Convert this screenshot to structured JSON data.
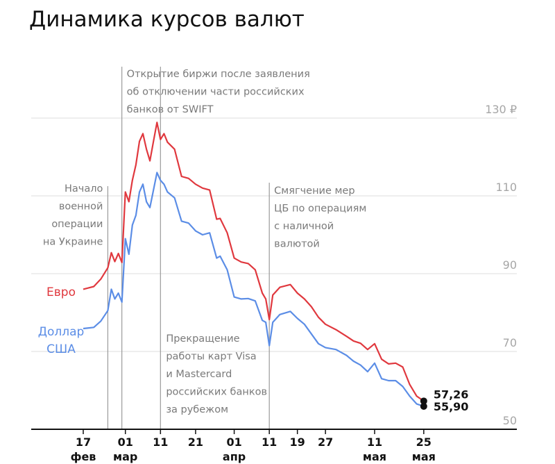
{
  "chart_data": {
    "type": "line",
    "title": "Динамика курсов валют",
    "y_ticks": [
      {
        "value": 130,
        "label": "130 ₽"
      },
      {
        "value": 110,
        "label": "110"
      },
      {
        "value": 90,
        "label": "90"
      },
      {
        "value": 70,
        "label": "70"
      },
      {
        "value": 50,
        "label": "50"
      }
    ],
    "ylim": [
      50,
      130
    ],
    "x_ticks": [
      {
        "date": "2022-02-17",
        "day": "17",
        "month": "фев"
      },
      {
        "date": "2022-03-01",
        "day": "01",
        "month": "мар"
      },
      {
        "date": "2022-03-11",
        "day": "11",
        "month": ""
      },
      {
        "date": "2022-03-21",
        "day": "21",
        "month": ""
      },
      {
        "date": "2022-04-01",
        "day": "01",
        "month": "апр"
      },
      {
        "date": "2022-04-11",
        "day": "11",
        "month": ""
      },
      {
        "date": "2022-04-19",
        "day": "19",
        "month": ""
      },
      {
        "date": "2022-04-27",
        "day": "27",
        "month": ""
      },
      {
        "date": "2022-05-11",
        "day": "11",
        "month": "мая"
      },
      {
        "date": "2022-05-25",
        "day": "25",
        "month": "мая"
      }
    ],
    "series": [
      {
        "name": "Евро",
        "color": "#e0383e",
        "end_label": "57,26",
        "points": [
          [
            "2022-02-17",
            86.0
          ],
          [
            "2022-02-20",
            86.7
          ],
          [
            "2022-02-22",
            88.6
          ],
          [
            "2022-02-24",
            91.5
          ],
          [
            "2022-02-25",
            95.4
          ],
          [
            "2022-02-26",
            93.1
          ],
          [
            "2022-02-27",
            95.2
          ],
          [
            "2022-02-28",
            92.9
          ],
          [
            "2022-03-01",
            111.0
          ],
          [
            "2022-03-02",
            108.5
          ],
          [
            "2022-03-03",
            114.0
          ],
          [
            "2022-03-04",
            118.0
          ],
          [
            "2022-03-05",
            124.0
          ],
          [
            "2022-03-06",
            126.0
          ],
          [
            "2022-03-07",
            122.0
          ],
          [
            "2022-03-08",
            119.0
          ],
          [
            "2022-03-09",
            124.0
          ],
          [
            "2022-03-10",
            128.9
          ],
          [
            "2022-03-11",
            124.5
          ],
          [
            "2022-03-12",
            126.0
          ],
          [
            "2022-03-13",
            123.8
          ],
          [
            "2022-03-15",
            122.0
          ],
          [
            "2022-03-17",
            115.0
          ],
          [
            "2022-03-19",
            114.5
          ],
          [
            "2022-03-21",
            113.0
          ],
          [
            "2022-03-23",
            112.0
          ],
          [
            "2022-03-25",
            111.5
          ],
          [
            "2022-03-27",
            104.0
          ],
          [
            "2022-03-28",
            104.2
          ],
          [
            "2022-03-30",
            100.5
          ],
          [
            "2022-04-01",
            94.0
          ],
          [
            "2022-04-03",
            93.0
          ],
          [
            "2022-04-05",
            92.6
          ],
          [
            "2022-04-07",
            91.0
          ],
          [
            "2022-04-09",
            85.0
          ],
          [
            "2022-04-10",
            83.5
          ],
          [
            "2022-04-11",
            78.2
          ],
          [
            "2022-04-12",
            84.5
          ],
          [
            "2022-04-14",
            86.5
          ],
          [
            "2022-04-17",
            87.2
          ],
          [
            "2022-04-19",
            85.0
          ],
          [
            "2022-04-21",
            83.5
          ],
          [
            "2022-04-23",
            81.5
          ],
          [
            "2022-04-25",
            78.8
          ],
          [
            "2022-04-27",
            77.0
          ],
          [
            "2022-04-30",
            75.6
          ],
          [
            "2022-05-03",
            73.9
          ],
          [
            "2022-05-05",
            72.7
          ],
          [
            "2022-05-07",
            72.1
          ],
          [
            "2022-05-09",
            70.5
          ],
          [
            "2022-05-11",
            72.0
          ],
          [
            "2022-05-13",
            68.0
          ],
          [
            "2022-05-15",
            66.8
          ],
          [
            "2022-05-17",
            67.0
          ],
          [
            "2022-05-19",
            66.0
          ],
          [
            "2022-05-21",
            61.5
          ],
          [
            "2022-05-23",
            58.5
          ],
          [
            "2022-05-25",
            57.26
          ]
        ]
      },
      {
        "name": "Доллар США",
        "color": "#5b8de6",
        "end_label": "55,90",
        "points": [
          [
            "2022-02-17",
            75.9
          ],
          [
            "2022-02-20",
            76.2
          ],
          [
            "2022-02-22",
            77.8
          ],
          [
            "2022-02-24",
            80.5
          ],
          [
            "2022-02-25",
            86.0
          ],
          [
            "2022-02-26",
            83.5
          ],
          [
            "2022-02-27",
            85.0
          ],
          [
            "2022-02-28",
            82.7
          ],
          [
            "2022-03-01",
            99.0
          ],
          [
            "2022-03-02",
            95.0
          ],
          [
            "2022-03-03",
            102.5
          ],
          [
            "2022-03-04",
            105.0
          ],
          [
            "2022-03-05",
            111.0
          ],
          [
            "2022-03-06",
            113.0
          ],
          [
            "2022-03-07",
            108.5
          ],
          [
            "2022-03-08",
            107.0
          ],
          [
            "2022-03-09",
            111.5
          ],
          [
            "2022-03-10",
            116.0
          ],
          [
            "2022-03-11",
            114.0
          ],
          [
            "2022-03-12",
            113.0
          ],
          [
            "2022-03-13",
            111.0
          ],
          [
            "2022-03-15",
            109.5
          ],
          [
            "2022-03-17",
            103.5
          ],
          [
            "2022-03-19",
            103.0
          ],
          [
            "2022-03-21",
            101.0
          ],
          [
            "2022-03-23",
            100.0
          ],
          [
            "2022-03-25",
            100.5
          ],
          [
            "2022-03-27",
            94.0
          ],
          [
            "2022-03-28",
            94.5
          ],
          [
            "2022-03-30",
            91.0
          ],
          [
            "2022-04-01",
            84.0
          ],
          [
            "2022-04-03",
            83.5
          ],
          [
            "2022-04-05",
            83.6
          ],
          [
            "2022-04-07",
            83.0
          ],
          [
            "2022-04-09",
            78.0
          ],
          [
            "2022-04-10",
            77.5
          ],
          [
            "2022-04-11",
            71.5
          ],
          [
            "2022-04-12",
            77.5
          ],
          [
            "2022-04-14",
            79.5
          ],
          [
            "2022-04-17",
            80.3
          ],
          [
            "2022-04-19",
            78.5
          ],
          [
            "2022-04-21",
            77.0
          ],
          [
            "2022-04-23",
            74.5
          ],
          [
            "2022-04-25",
            72.0
          ],
          [
            "2022-04-27",
            71.0
          ],
          [
            "2022-04-30",
            70.5
          ],
          [
            "2022-05-03",
            69.0
          ],
          [
            "2022-05-05",
            67.5
          ],
          [
            "2022-05-07",
            66.5
          ],
          [
            "2022-05-09",
            64.8
          ],
          [
            "2022-05-11",
            67.0
          ],
          [
            "2022-05-13",
            63.0
          ],
          [
            "2022-05-15",
            62.5
          ],
          [
            "2022-05-17",
            62.5
          ],
          [
            "2022-05-19",
            61.0
          ],
          [
            "2022-05-21",
            58.5
          ],
          [
            "2022-05-23",
            56.5
          ],
          [
            "2022-05-25",
            55.9
          ]
        ]
      }
    ],
    "annotations": [
      {
        "date": "2022-02-24",
        "text": [
          "Начало",
          "военной",
          "операции",
          "на Украине"
        ]
      },
      {
        "date": "2022-02-28",
        "text": [
          "Открытие биржи после заявления",
          "об отключении части российских",
          "банков от SWIFT"
        ]
      },
      {
        "date": "2022-03-11",
        "text": [
          "Прекращение",
          "работы карт Visa",
          "и Mastercard",
          "российских банков",
          "за рубежом"
        ]
      },
      {
        "date": "2022-04-11",
        "text": [
          "Смягчение мер",
          "ЦБ по операциям",
          "с наличной",
          "валютой"
        ]
      }
    ],
    "grid": true
  }
}
